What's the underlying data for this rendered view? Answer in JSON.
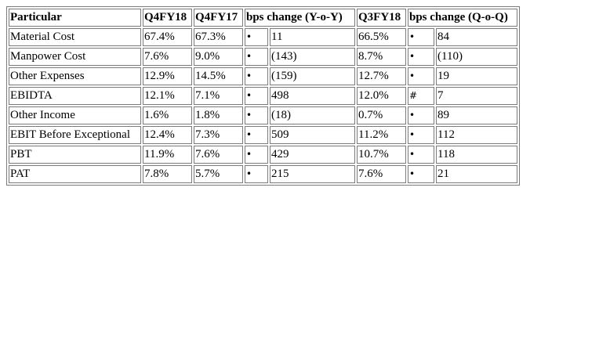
{
  "table": {
    "headers": {
      "particular": "Particular",
      "q4fy18": "Q4FY18",
      "q4fy17": "Q4FY17",
      "bps_yoy": "bps change (Y-o-Y)",
      "q3fy18": "Q3FY18",
      "bps_qoq": "bps change (Q-o-Q)"
    },
    "rows": [
      {
        "particular": "Material Cost",
        "q4fy18": "67.4%",
        "q4fy17": "67.3%",
        "yoy_mark": "•",
        "yoy": "11",
        "q3fy18": "66.5%",
        "qoq_mark": "•",
        "qoq": "84"
      },
      {
        "particular": "Manpower Cost",
        "q4fy18": "7.6%",
        "q4fy17": "9.0%",
        "yoy_mark": "•",
        "yoy": "(143)",
        "q3fy18": "8.7%",
        "qoq_mark": "•",
        "qoq": "(110)"
      },
      {
        "particular": "Other Expenses",
        "q4fy18": "12.9%",
        "q4fy17": "14.5%",
        "yoy_mark": "•",
        "yoy": "(159)",
        "q3fy18": "12.7%",
        "qoq_mark": "•",
        "qoq": "19"
      },
      {
        "particular": "EBIDTA",
        "q4fy18": "12.1%",
        "q4fy17": "7.1%",
        "yoy_mark": "•",
        "yoy": "498",
        "q3fy18": "12.0%",
        "qoq_mark": "#",
        "qoq": "7"
      },
      {
        "particular": "Other Income",
        "q4fy18": "1.6%",
        "q4fy17": "1.8%",
        "yoy_mark": "•",
        "yoy": "(18)",
        "q3fy18": "0.7%",
        "qoq_mark": "•",
        "qoq": "89"
      },
      {
        "particular": "EBIT Before Exceptional",
        "q4fy18": "12.4%",
        "q4fy17": "7.3%",
        "yoy_mark": "•",
        "yoy": "509",
        "q3fy18": "11.2%",
        "qoq_mark": "•",
        "qoq": "112"
      },
      {
        "particular": "PBT",
        "q4fy18": "11.9%",
        "q4fy17": "7.6%",
        "yoy_mark": "•",
        "yoy": "429",
        "q3fy18": "10.7%",
        "qoq_mark": "•",
        "qoq": "118"
      },
      {
        "particular": "PAT",
        "q4fy18": "7.8%",
        "q4fy17": "5.7%",
        "yoy_mark": "•",
        "yoy": "215",
        "q3fy18": "7.6%",
        "qoq_mark": "•",
        "qoq": "21"
      }
    ]
  },
  "colors": {
    "border": "#7a7a7a",
    "background": "#ffffff",
    "text": "#000000"
  }
}
